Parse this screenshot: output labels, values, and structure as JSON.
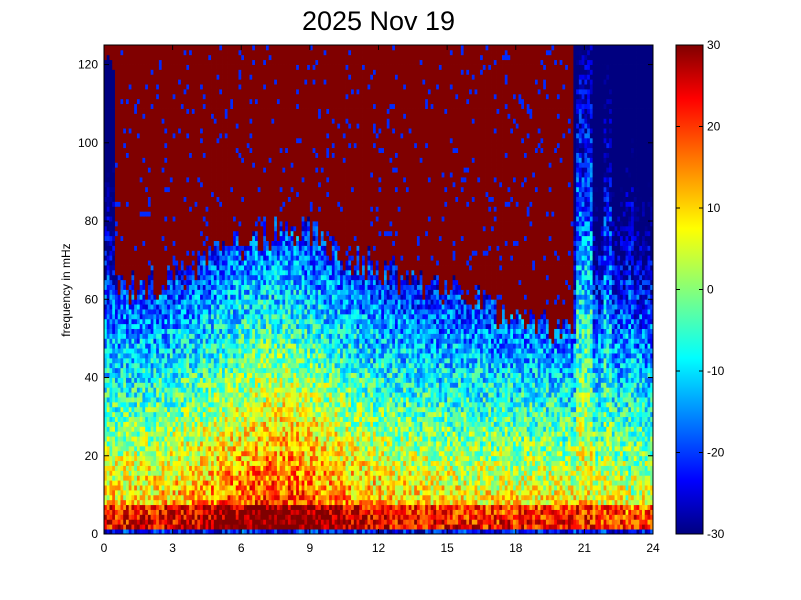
{
  "chart_data": {
    "type": "heatmap",
    "title": "2025 Nov 19",
    "xlabel": "",
    "ylabel": "frequency in mHz",
    "xlim": [
      0,
      24
    ],
    "ylim": [
      0,
      125
    ],
    "x_ticks": [
      0,
      3,
      6,
      9,
      12,
      15,
      18,
      21,
      24
    ],
    "y_ticks": [
      0,
      20,
      40,
      60,
      80,
      100,
      120
    ],
    "colorbar": {
      "range": [
        -30,
        30
      ],
      "ticks": [
        30,
        20,
        10,
        0,
        -10,
        -20,
        -30
      ],
      "colormap": "jet"
    },
    "grid": false
  }
}
